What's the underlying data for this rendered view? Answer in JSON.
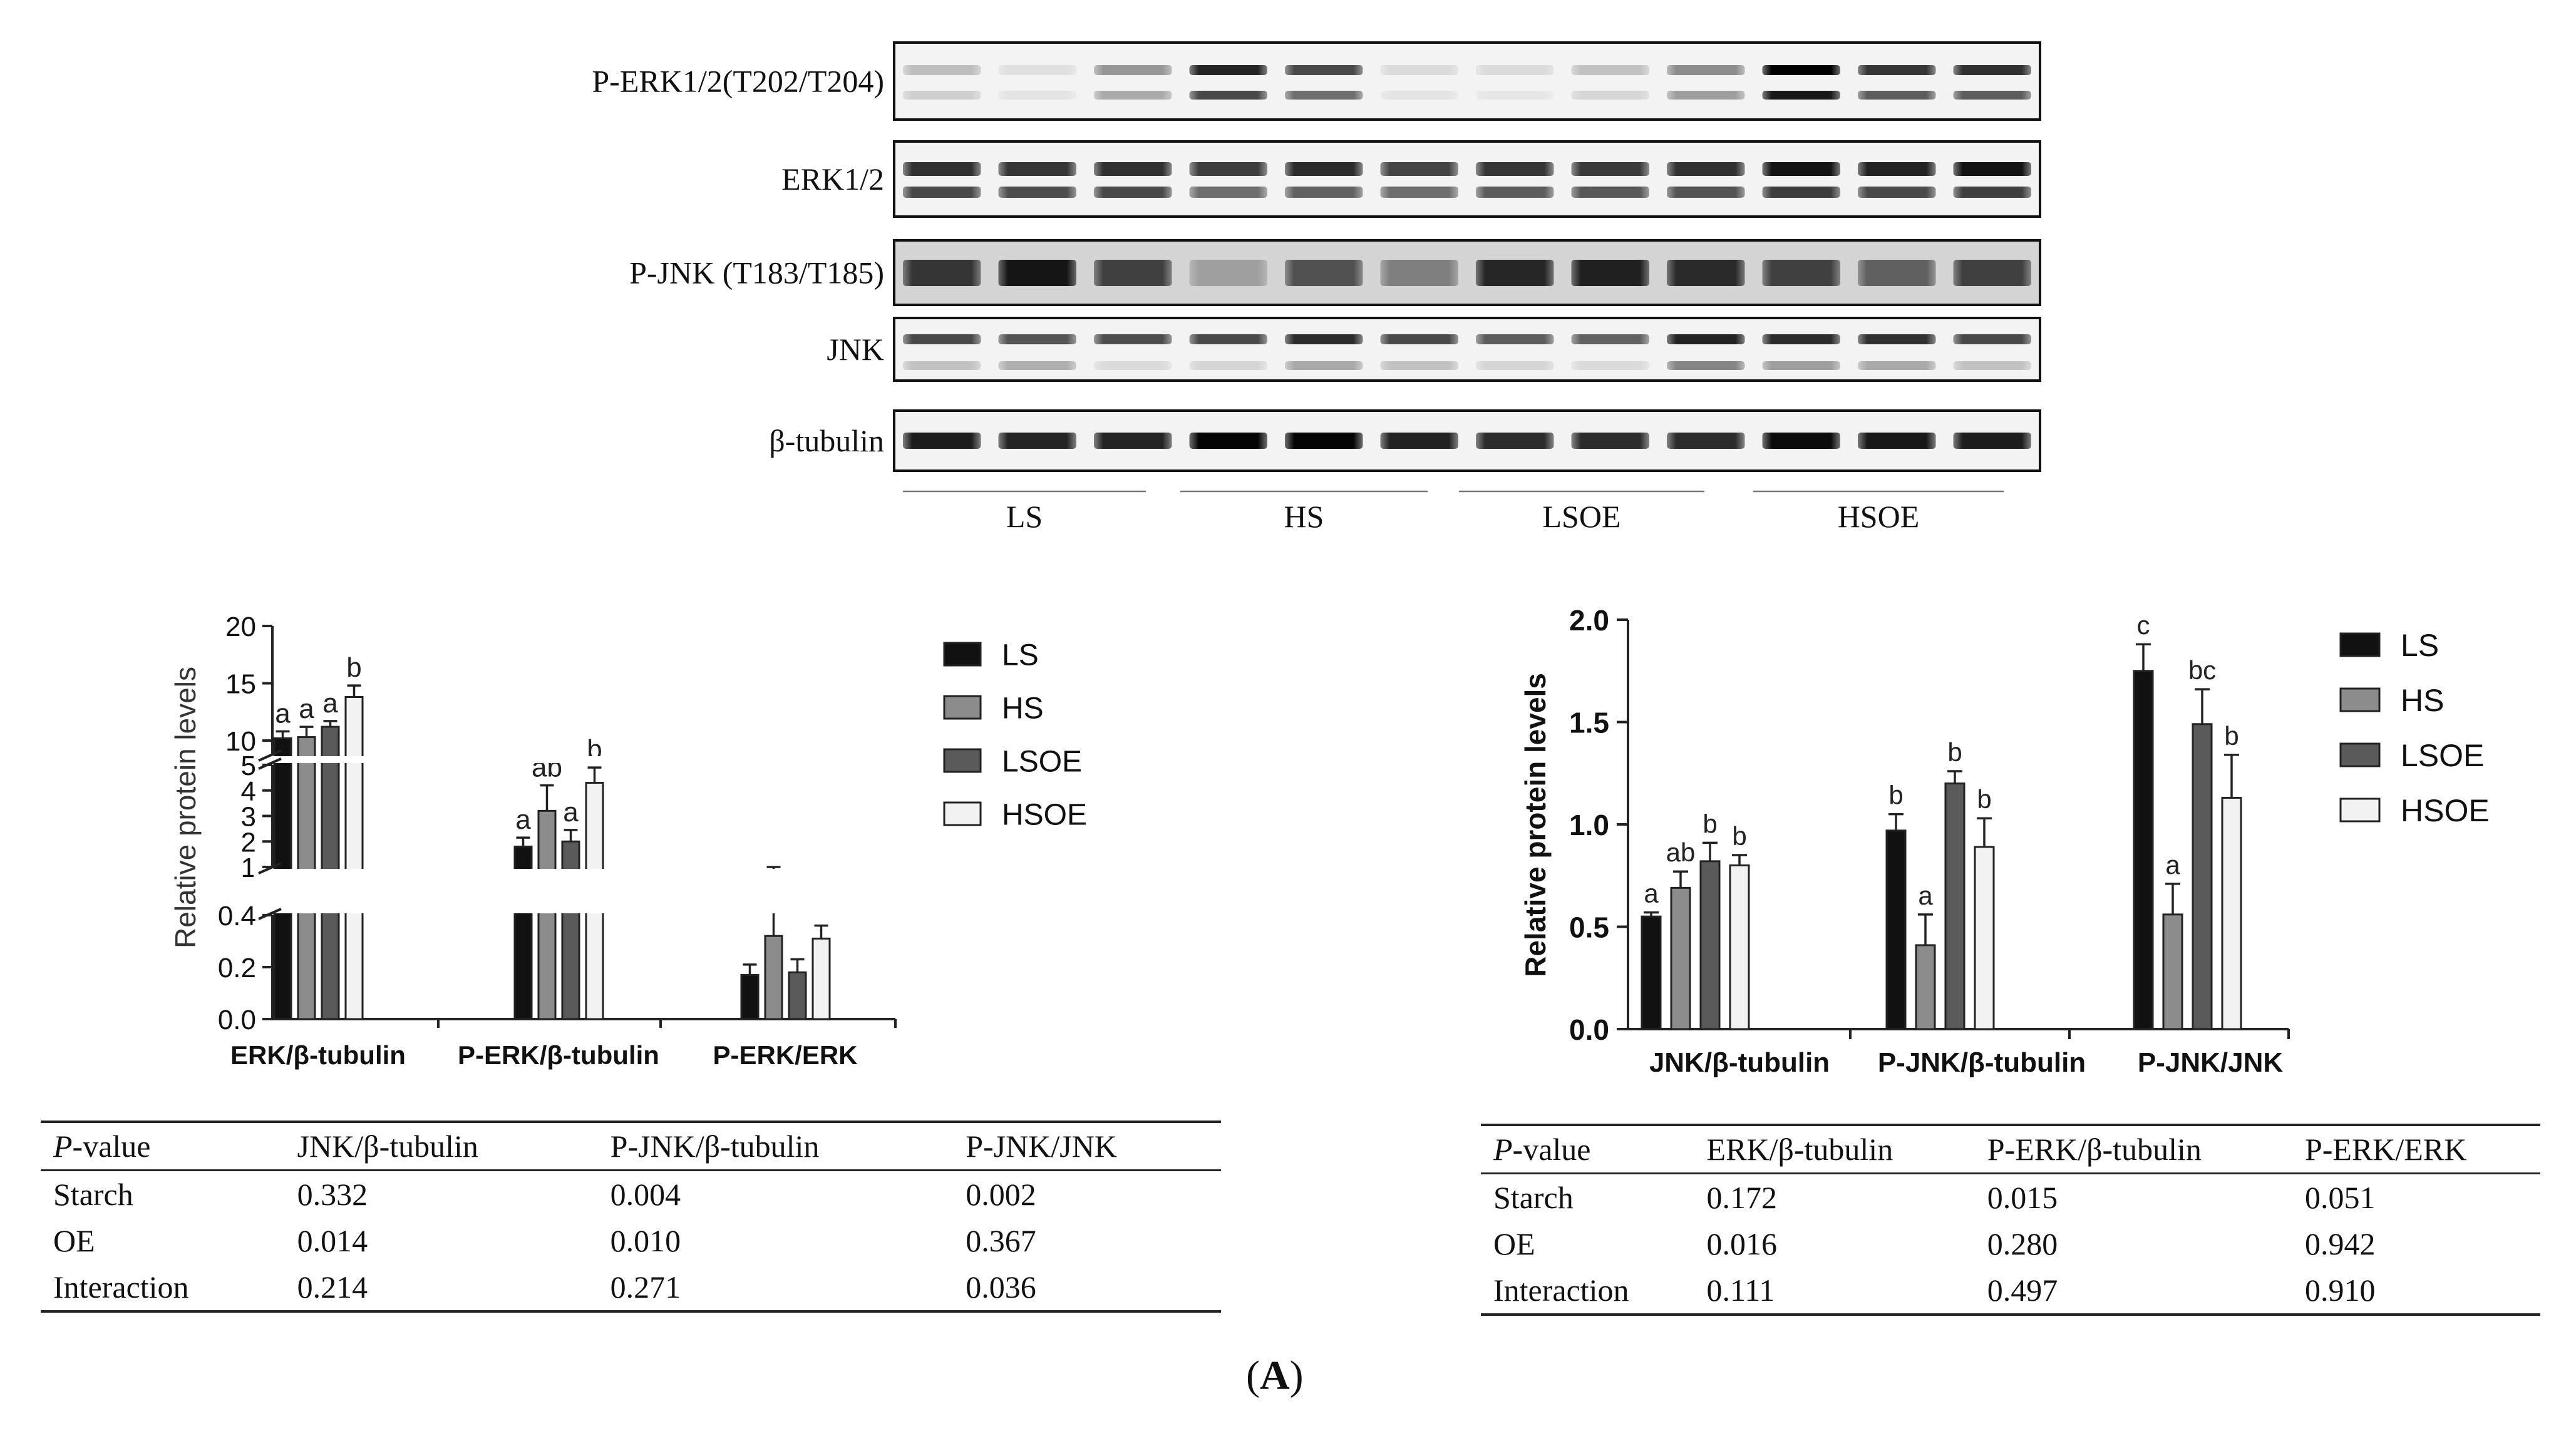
{
  "blot": {
    "rows": [
      {
        "label": "P-ERK1/2(T202/T204)"
      },
      {
        "label": "ERK1/2"
      },
      {
        "label": "P-JNK (T183/T185)"
      },
      {
        "label": "JNK"
      },
      {
        "label": "β-tubulin"
      }
    ],
    "groups": [
      "LS",
      "HS",
      "LSOE",
      "HSOE"
    ]
  },
  "colors": {
    "LS": "#111111",
    "HS": "#8c8c8c",
    "LSOE": "#5a5a5a",
    "HSOE": "#f2f2f2"
  },
  "chart_left": {
    "type": "bar",
    "ylabel": "Relative protein levels",
    "categories": [
      "ERK/β-tubulin",
      "P-ERK/β-tubulin",
      "P-ERK/ERK"
    ],
    "series": [
      {
        "name": "LS",
        "values": [
          10.2,
          1.8,
          0.17
        ],
        "errors": [
          0.6,
          0.35,
          0.04
        ],
        "letters": [
          "a",
          "a",
          ""
        ]
      },
      {
        "name": "HS",
        "values": [
          10.3,
          3.2,
          0.32
        ],
        "errors": [
          0.9,
          1.0,
          0.1
        ],
        "letters": [
          "a",
          "ab",
          ""
        ]
      },
      {
        "name": "LSOE",
        "values": [
          11.2,
          2.0,
          0.18
        ],
        "errors": [
          0.5,
          0.45,
          0.05
        ],
        "letters": [
          "a",
          "a",
          ""
        ]
      },
      {
        "name": "HSOE",
        "values": [
          13.8,
          4.3,
          0.31
        ],
        "errors": [
          1.0,
          0.6,
          0.05
        ],
        "letters": [
          "b",
          "b",
          ""
        ]
      }
    ],
    "axis_segments": [
      {
        "range": [
          0,
          0.4
        ],
        "ticks": [
          "0.0",
          "0.2",
          "0.4"
        ],
        "tick_values": [
          0,
          0.2,
          0.4
        ]
      },
      {
        "range": [
          1,
          5
        ],
        "ticks": [
          "1",
          "2",
          "3",
          "4",
          "5"
        ],
        "tick_values": [
          1,
          2,
          3,
          4,
          5
        ]
      },
      {
        "range": [
          8.8,
          20
        ],
        "ticks": [
          "10",
          "15",
          "20"
        ],
        "tick_values": [
          10,
          15,
          20
        ]
      }
    ],
    "legend_placement": "right",
    "grid": false
  },
  "chart_right": {
    "type": "bar",
    "ylabel": "Relative protein levels",
    "categories": [
      "JNK/β-tubulin",
      "P-JNK/β-tubulin",
      "P-JNK/JNK"
    ],
    "ylim": [
      0,
      2.0
    ],
    "yticks": [
      "0.0",
      "0.5",
      "1.0",
      "1.5",
      "2.0"
    ],
    "series": [
      {
        "name": "LS",
        "values": [
          0.55,
          0.97,
          1.75
        ],
        "errors": [
          0.02,
          0.08,
          0.13
        ],
        "letters": [
          "a",
          "b",
          "c"
        ]
      },
      {
        "name": "HS",
        "values": [
          0.69,
          0.41,
          0.56
        ],
        "errors": [
          0.08,
          0.15,
          0.15
        ],
        "letters": [
          "ab",
          "a",
          "a"
        ]
      },
      {
        "name": "LSOE",
        "values": [
          0.82,
          1.2,
          1.49
        ],
        "errors": [
          0.09,
          0.06,
          0.17
        ],
        "letters": [
          "b",
          "b",
          "bc"
        ]
      },
      {
        "name": "HSOE",
        "values": [
          0.8,
          0.89,
          1.13
        ],
        "errors": [
          0.05,
          0.14,
          0.21
        ],
        "letters": [
          "b",
          "b",
          "b"
        ]
      }
    ],
    "legend_placement": "right",
    "grid": false
  },
  "table_left": {
    "p_label_italic": "P",
    "p_label_rest": "-value",
    "columns": [
      "JNK/β-tubulin",
      "P-JNK/β-tubulin",
      "P-JNK/JNK"
    ],
    "rows": [
      {
        "name": "Starch",
        "values": [
          "0.332",
          "0.004",
          "0.002"
        ]
      },
      {
        "name": "OE",
        "values": [
          "0.014",
          "0.010",
          "0.367"
        ]
      },
      {
        "name": "Interaction",
        "values": [
          "0.214",
          "0.271",
          "0.036"
        ]
      }
    ]
  },
  "table_right": {
    "p_label_italic": "P",
    "p_label_rest": "-value",
    "columns": [
      "ERK/β-tubulin",
      "P-ERK/β-tubulin",
      "P-ERK/ERK"
    ],
    "rows": [
      {
        "name": "Starch",
        "values": [
          "0.172",
          "0.015",
          "0.051"
        ]
      },
      {
        "name": "OE",
        "values": [
          "0.016",
          "0.280",
          "0.942"
        ]
      },
      {
        "name": "Interaction",
        "values": [
          "0.111",
          "0.497",
          "0.910"
        ]
      }
    ]
  },
  "panel_label": {
    "open": "(",
    "letter": "A",
    "close": ")"
  }
}
